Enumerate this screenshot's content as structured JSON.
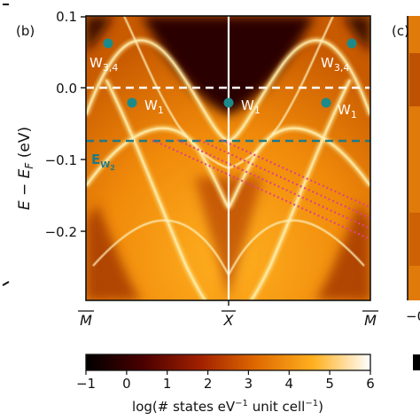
{
  "panel_labels": {
    "b": "(b)",
    "c": "(c)"
  },
  "yaxis": {
    "label_main": "E − E",
    "label_sub": "F",
    "label_unit": " (eV)",
    "ticks": [
      "0.1",
      "0.0",
      "−0.1",
      "−0.2"
    ]
  },
  "xaxis": {
    "ticks": [
      "M",
      "X",
      "M"
    ],
    "right_partial_tick": "−0"
  },
  "weyl_labels": {
    "w34_left": "W",
    "w34_left_sub": "3,4",
    "w34_right": "W",
    "w34_right_sub": "3,4",
    "w1_a": "W",
    "w1_a_sub": "1",
    "w1_b": "W",
    "w1_b_sub": "1",
    "w1_c": "W",
    "w1_c_sub": "1",
    "ew2": "E",
    "ew2_sub": "W",
    "ew2_subsub": "2"
  },
  "colorbar": {
    "ticks": [
      "−1",
      "0",
      "1",
      "2",
      "3",
      "4",
      "5",
      "6"
    ],
    "label_pre": "log(# states eV",
    "label_sup1": "−1",
    "label_mid": " unit cell",
    "label_sup2": "−1",
    "label_post": ")"
  },
  "colors": {
    "weyl_point": "#1c8a8a",
    "fermi_line": "#ffffff",
    "ew2_line": "#1f7a85",
    "connector": "#e0457a"
  }
}
